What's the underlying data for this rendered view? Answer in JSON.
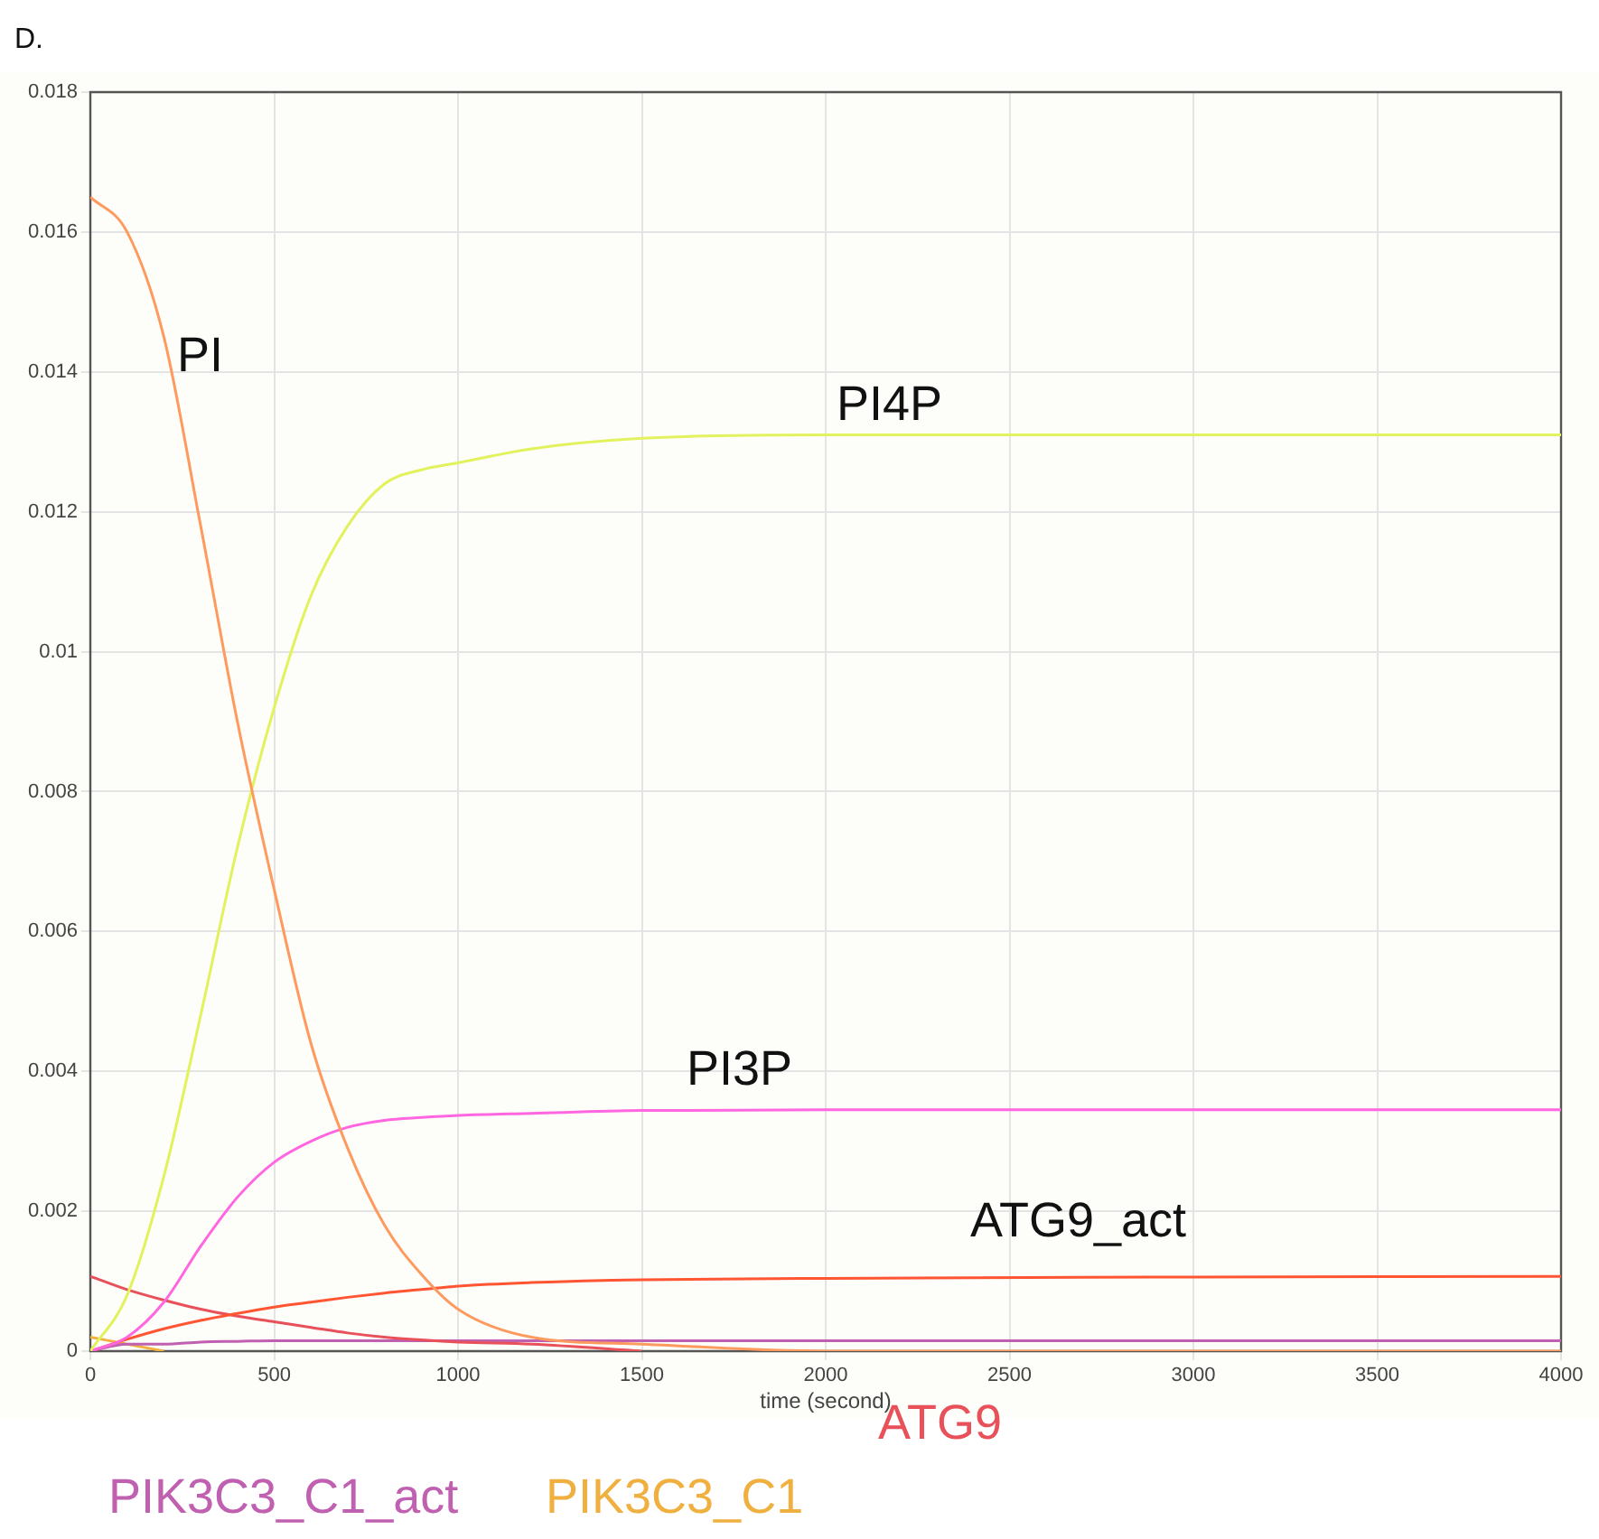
{
  "chart_data": {
    "type": "line",
    "title": "D.",
    "xlabel": "time (second)",
    "xlim": [
      0,
      4000
    ],
    "xticks": [
      0,
      500,
      1000,
      1500,
      2000,
      2500,
      3000,
      3500,
      4000
    ],
    "ylim": [
      0,
      0.018
    ],
    "yticks": [
      0,
      0.002,
      0.004,
      0.006,
      0.008,
      0.01,
      0.012,
      0.014,
      0.016,
      0.018
    ],
    "grid": true,
    "legend": false,
    "marker": "none",
    "x": [
      0,
      100,
      200,
      300,
      400,
      500,
      600,
      700,
      800,
      900,
      1000,
      1200,
      1500,
      2000,
      3000,
      4000
    ],
    "series": [
      {
        "name": "PI",
        "color": "#ff9a5e",
        "values": [
          0.0165,
          0.016,
          0.0145,
          0.0118,
          0.009,
          0.0066,
          0.0044,
          0.0029,
          0.0018,
          0.0011,
          0.0006,
          0.0002,
          0.0001,
          0,
          0,
          0
        ]
      },
      {
        "name": "PI4P",
        "color": "#e2f25c",
        "values": [
          0,
          0.0008,
          0.0025,
          0.0048,
          0.0072,
          0.0092,
          0.0108,
          0.0118,
          0.0124,
          0.0126,
          0.0127,
          0.0129,
          0.01305,
          0.0131,
          0.0131,
          0.0131
        ]
      },
      {
        "name": "PI3P",
        "color": "#ff66e0",
        "values": [
          0,
          0.0002,
          0.0007,
          0.0015,
          0.0022,
          0.0027,
          0.003,
          0.0032,
          0.0033,
          0.00334,
          0.00337,
          0.0034,
          0.00344,
          0.00345,
          0.00345,
          0.00345
        ]
      },
      {
        "name": "ATG9_act",
        "color": "#ff5533",
        "values": [
          0,
          0.00017,
          0.00032,
          0.00044,
          0.00054,
          0.00063,
          0.0007,
          0.00077,
          0.00083,
          0.00088,
          0.00093,
          0.00098,
          0.00102,
          0.00104,
          0.00106,
          0.00107
        ]
      },
      {
        "name": "ATG9",
        "color": "#e8505a",
        "values": [
          0.00107,
          0.00088,
          0.00073,
          0.0006,
          0.0005,
          0.00042,
          0.00034,
          0.00026,
          0.0002,
          0.00016,
          0.00013,
          0.0001,
          0,
          null,
          null,
          null
        ]
      },
      {
        "name": "PIK3C3_C1_act",
        "color": "#c060b0",
        "values": [
          0,
          0.0001,
          0.0001,
          0.00013,
          0.00014,
          0.00015,
          0.00015,
          0.00015,
          0.00015,
          0.00015,
          0.00015,
          0.00015,
          0.00015,
          0.00015,
          0.00015,
          0.00015
        ]
      },
      {
        "name": "PIK3C3_C1",
        "color": "#f0b040",
        "values": [
          0.0002,
          0.0001,
          0,
          null,
          null,
          null,
          null,
          null,
          null,
          null,
          null,
          null,
          null,
          null,
          null,
          null
        ]
      }
    ]
  }
}
